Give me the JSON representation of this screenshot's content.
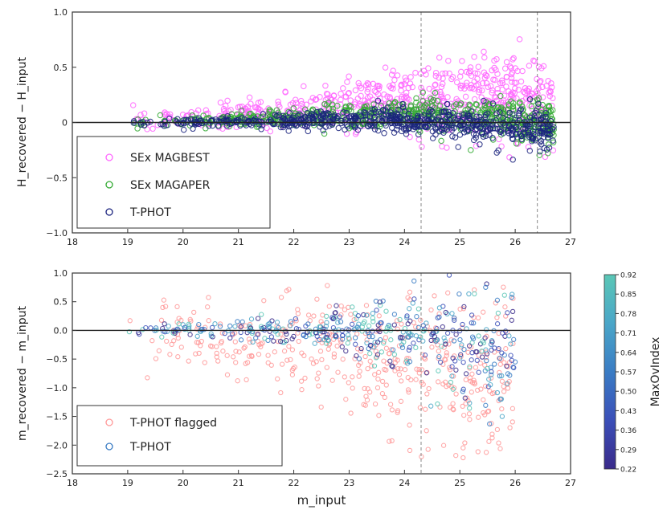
{
  "chart_data": [
    {
      "type": "scatter",
      "title": "",
      "xlabel": "",
      "ylabel": "H_recovered − H_input",
      "xlim": [
        18,
        27
      ],
      "ylim": [
        -1.0,
        1.0
      ],
      "xticks": [
        18,
        19,
        20,
        21,
        22,
        23,
        24,
        25,
        26,
        27
      ],
      "xtick_labels": [
        "18",
        "19",
        "20",
        "21",
        "22",
        "23",
        "24",
        "25",
        "26",
        "27"
      ],
      "yticks": [
        1.0,
        0.5,
        0,
        -0.5,
        -1.0
      ],
      "ytick_labels": [
        "1.0",
        "0.5",
        "0",
        "−0.5",
        "−1.0"
      ],
      "legend_position": "lower-left",
      "series": [
        {
          "name": "SEx MAGBEST",
          "color": "#ff66ff",
          "center": [
            0.02,
            0.05,
            0.08,
            0.12,
            0.18,
            0.22,
            0.25,
            0.2
          ],
          "spread": [
            0.05,
            0.06,
            0.07,
            0.09,
            0.12,
            0.15,
            0.18,
            0.2
          ]
        },
        {
          "name": "SEx MAGAPER",
          "color": "#33aa33",
          "center": [
            0.0,
            0.02,
            0.04,
            0.06,
            0.08,
            0.08,
            0.05,
            0.0
          ],
          "spread": [
            0.03,
            0.03,
            0.04,
            0.05,
            0.06,
            0.07,
            0.08,
            0.1
          ]
        },
        {
          "name": "T-PHOT",
          "color": "#1a237e",
          "center": [
            0.0,
            0.0,
            0.01,
            0.02,
            0.03,
            0.0,
            -0.04,
            -0.08
          ],
          "spread": [
            0.02,
            0.02,
            0.03,
            0.04,
            0.05,
            0.06,
            0.08,
            0.1
          ]
        }
      ],
      "bin_mags": [
        19.5,
        20.5,
        21.5,
        22.5,
        23.5,
        24.5,
        25.5,
        26.3
      ],
      "vlines": [
        24.3,
        26.4
      ],
      "hline": 0
    },
    {
      "type": "scatter",
      "title": "",
      "xlabel": "m_input",
      "ylabel": "m_recovered − m_input",
      "xlim": [
        18,
        27
      ],
      "ylim": [
        -2.5,
        1.0
      ],
      "xticks": [
        18,
        19,
        20,
        21,
        22,
        23,
        24,
        25,
        26,
        27
      ],
      "xtick_labels": [
        "18",
        "19",
        "20",
        "21",
        "22",
        "23",
        "24",
        "25",
        "26",
        "27"
      ],
      "yticks": [
        1.0,
        0.5,
        0.0,
        -0.5,
        -1.0,
        -1.5,
        -2.0,
        -2.5
      ],
      "ytick_labels": [
        "1.0",
        "0.5",
        "0.0",
        "−0.5",
        "−1.0",
        "−1.5",
        "−2.0",
        "−2.5"
      ],
      "legend_position": "lower-left",
      "series": [
        {
          "name": "T-PHOT flagged",
          "color": "#ff9999",
          "center": [
            -0.05,
            -0.1,
            -0.3,
            -0.6,
            -1.0
          ],
          "spread": [
            0.3,
            0.4,
            0.5,
            0.6,
            0.7
          ]
        },
        {
          "name": "T-PHOT",
          "color": "#3f51b5",
          "center": [
            0.0,
            0.0,
            0.0,
            -0.05,
            -0.3
          ],
          "spread": [
            0.05,
            0.1,
            0.15,
            0.3,
            0.6
          ]
        }
      ],
      "bin_mags": [
        19.5,
        21.0,
        22.5,
        24.0,
        25.5
      ],
      "vlines": [
        24.3
      ],
      "hline": 0.0,
      "colorbar": {
        "label": "MaxOvIndex",
        "ticks": [
          0.22,
          0.29,
          0.36,
          0.43,
          0.5,
          0.57,
          0.64,
          0.71,
          0.78,
          0.85,
          0.92
        ],
        "tick_labels": [
          "0.22",
          "0.29",
          "0.36",
          "0.43",
          "0.50",
          "0.57",
          "0.64",
          "0.71",
          "0.78",
          "0.85",
          "0.92"
        ],
        "colors": [
          "#3a2a8a",
          "#3b4fb8",
          "#3a7cc4",
          "#4aa6c8",
          "#5bc7b6"
        ]
      }
    }
  ]
}
